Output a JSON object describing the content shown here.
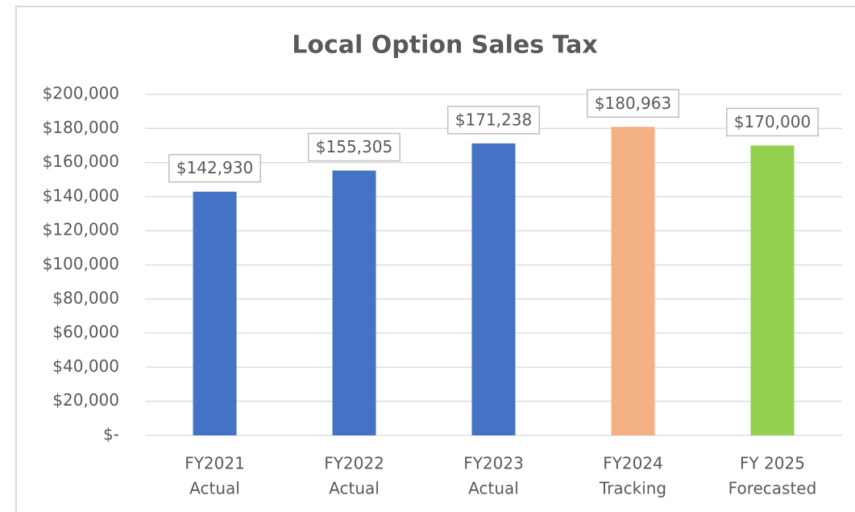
{
  "chart_data": {
    "type": "bar",
    "title": "Local Option Sales Tax",
    "categories": [
      [
        "FY2021",
        "Actual"
      ],
      [
        "FY2022",
        "Actual"
      ],
      [
        "FY2023",
        "Actual"
      ],
      [
        "FY2024",
        "Tracking"
      ],
      [
        "FY 2025",
        "Forecasted"
      ]
    ],
    "values": [
      142930,
      155305,
      171238,
      180963,
      170000
    ],
    "value_labels": [
      "$142,930",
      "$155,305",
      "$171,238",
      "$180,963",
      "$170,000"
    ],
    "colors": [
      "#4472c4",
      "#4472c4",
      "#4472c4",
      "#f4b183",
      "#92d050"
    ],
    "ylim": [
      0,
      200000
    ],
    "yticks": [
      {
        "value": 0,
        "label": "$-"
      },
      {
        "value": 20000,
        "label": "$20,000"
      },
      {
        "value": 40000,
        "label": "$40,000"
      },
      {
        "value": 60000,
        "label": "$60,000"
      },
      {
        "value": 80000,
        "label": "$80,000"
      },
      {
        "value": 100000,
        "label": "$100,000"
      },
      {
        "value": 120000,
        "label": "$120,000"
      },
      {
        "value": 140000,
        "label": "$140,000"
      },
      {
        "value": 160000,
        "label": "$160,000"
      },
      {
        "value": 180000,
        "label": "$180,000"
      },
      {
        "value": 200000,
        "label": "$200,000"
      }
    ],
    "grid": true
  }
}
